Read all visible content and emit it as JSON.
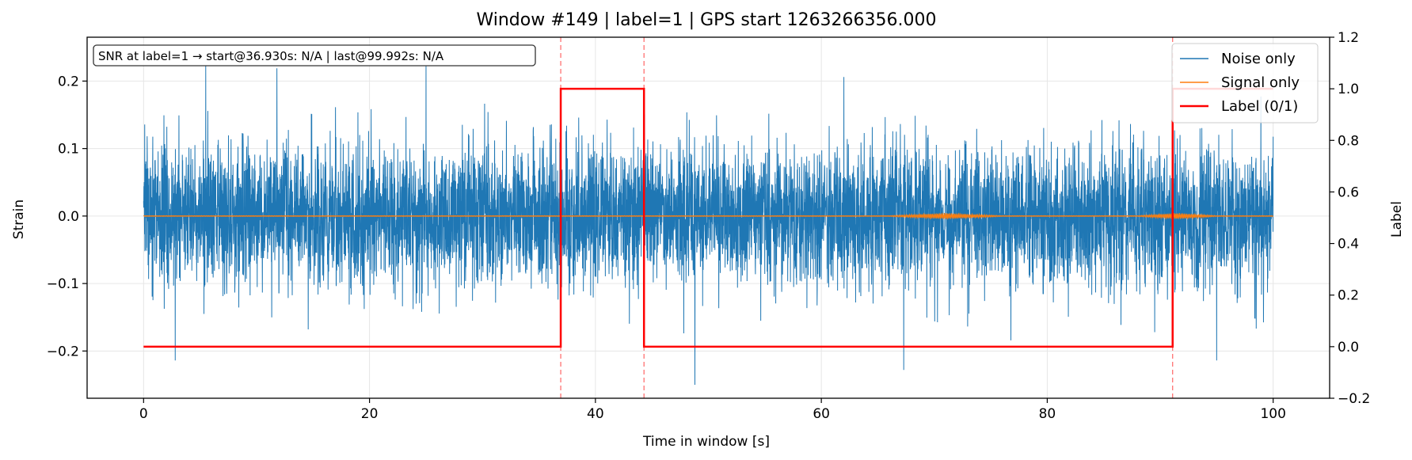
{
  "chart_data": {
    "type": "line",
    "title": "Window #149  |  label=1  |  GPS start 1263266356.000",
    "xlabel": "Time in window [s]",
    "ylabel": "Strain",
    "ylabel_right": "Label",
    "xlim": [
      -5,
      105
    ],
    "ylim": [
      -0.27,
      0.265
    ],
    "ylim_right": [
      -0.2,
      1.2
    ],
    "xticks": [
      0,
      20,
      40,
      60,
      80,
      100
    ],
    "xtick_labels": [
      "0",
      "20",
      "40",
      "60",
      "80",
      "100"
    ],
    "yticks": [
      -0.2,
      -0.1,
      0.0,
      0.1,
      0.2
    ],
    "ytick_labels": [
      "−0.2",
      "−0.1",
      "0.0",
      "0.1",
      "0.2"
    ],
    "yticks_right": [
      -0.2,
      0.0,
      0.2,
      0.4,
      0.6,
      0.8,
      1.0,
      1.2
    ],
    "ytick_labels_right": [
      "−0.2",
      "0.0",
      "0.2",
      "0.4",
      "0.6",
      "0.8",
      "1.0",
      "1.2"
    ],
    "grid": true,
    "legend_position": "top-right",
    "annotation": "SNR at label=1 → start@36.930s: N/A | last@99.992s: N/A",
    "vlines": [
      36.93,
      44.3,
      91.1
    ],
    "colors": {
      "noise": "#1f77b4",
      "signal": "#ff7f0e",
      "label": "#ff0000",
      "vline": "#ff6666",
      "grid": "#e6e6e6"
    },
    "series": [
      {
        "name": "Noise only",
        "axis": "left",
        "style": "gaussian-noise",
        "x_range": [
          0,
          100
        ],
        "std": 0.052,
        "notable_peaks": [
          {
            "x": 5.5,
            "y": 0.223
          },
          {
            "x": 11.8,
            "y": 0.219
          },
          {
            "x": 25.0,
            "y": 0.222
          },
          {
            "x": 62.0,
            "y": 0.206
          },
          {
            "x": 2.8,
            "y": -0.214
          },
          {
            "x": 48.8,
            "y": -0.25
          },
          {
            "x": 67.3,
            "y": -0.228
          },
          {
            "x": 95.0,
            "y": -0.214
          }
        ]
      },
      {
        "name": "Signal only",
        "axis": "left",
        "style": "near-zero",
        "x_range": [
          0,
          100
        ],
        "bursts": [
          {
            "x_start": 66,
            "x_end": 76,
            "amplitude": 0.004
          },
          {
            "x_start": 88,
            "x_end": 95,
            "amplitude": 0.004
          }
        ]
      },
      {
        "name": "Label (0/1)",
        "axis": "right",
        "style": "step",
        "x": [
          0,
          36.93,
          36.93,
          44.3,
          44.3,
          91.1,
          91.1,
          100
        ],
        "y": [
          0,
          0,
          1,
          1,
          0,
          0,
          1,
          1
        ]
      }
    ]
  }
}
